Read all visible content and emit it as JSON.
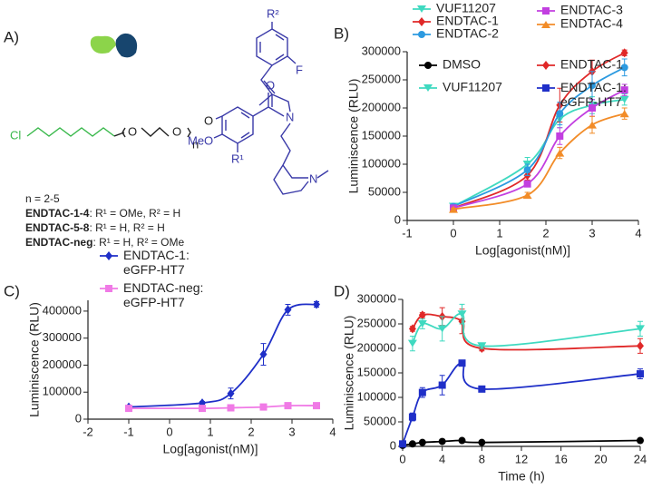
{
  "panel_labels": [
    "A)",
    "B)",
    "C)",
    "D)"
  ],
  "structure": {
    "atoms": [
      "Cl",
      "O",
      "O",
      "n",
      "O",
      "MeO",
      "R¹",
      "O",
      "N",
      "N",
      "F",
      "R²"
    ],
    "caption": [
      {
        "text": "n = 2-5"
      },
      {
        "name": "ENDTAC-1-4",
        "text": ": R¹ = OMe, R² = H"
      },
      {
        "name": "ENDTAC-5-8",
        "text": ": R¹ = H, R² = H"
      },
      {
        "name": "ENDTAC-neg",
        "text": ": R¹ = H, R² = OMe"
      }
    ]
  },
  "chart_data": [
    {
      "type": "line",
      "x_label": "Log[agonist(nM)]",
      "y_label": "Luminiscence (RLU)",
      "x": [
        0,
        1.6,
        2.3,
        3,
        3.7
      ],
      "series": [
        {
          "name": "VUF11207",
          "color": "#3fd9c0",
          "marker": "triangle-down",
          "values": [
            25000,
            100000,
            180000,
            205000,
            215000
          ],
          "errors": [
            2000,
            12000,
            15000,
            15000,
            10000
          ]
        },
        {
          "name": "ENDTAC-1",
          "color": "#e02828",
          "marker": "diamond",
          "values": [
            22000,
            80000,
            205000,
            265000,
            298000
          ],
          "errors": [
            2000,
            8000,
            30000,
            20000,
            5000
          ]
        },
        {
          "name": "ENDTAC-2",
          "color": "#2c9ae0",
          "marker": "circle",
          "values": [
            25000,
            90000,
            190000,
            240000,
            272000
          ],
          "errors": [
            2000,
            10000,
            20000,
            25000,
            15000
          ]
        },
        {
          "name": "ENDTAC-3",
          "color": "#c23fe0",
          "marker": "square",
          "values": [
            22000,
            65000,
            150000,
            200000,
            232000
          ],
          "errors": [
            2000,
            5000,
            15000,
            15000,
            10000
          ]
        },
        {
          "name": "ENDTAC-4",
          "color": "#f28c28",
          "marker": "triangle-up",
          "values": [
            20000,
            45000,
            120000,
            170000,
            190000
          ],
          "errors": [
            2000,
            5000,
            10000,
            15000,
            10000
          ]
        }
      ],
      "xlim": [
        -1,
        4
      ],
      "xticks": [
        -1,
        0,
        1,
        2,
        3,
        4
      ],
      "ylim": [
        0,
        300000
      ],
      "yticks": [
        0,
        50000,
        100000,
        150000,
        200000,
        250000,
        300000
      ]
    },
    {
      "type": "line",
      "x_label": "Log[agonist(nM)]",
      "y_label": "Luminiscence (RLU)",
      "x": [
        -1,
        0.8,
        1.5,
        2.3,
        2.9,
        3.6
      ],
      "series": [
        {
          "name": "ENDTAC-1:\neGFP-HT7",
          "color": "#1f2fc8",
          "marker": "diamond",
          "values": [
            45000,
            60000,
            95000,
            240000,
            405000,
            425000
          ],
          "errors": [
            5000,
            5000,
            20000,
            40000,
            20000,
            10000
          ]
        },
        {
          "name": "ENDTAC-neg:\neGFP-HT7",
          "color": "#f07ae6",
          "marker": "square",
          "values": [
            40000,
            40000,
            42000,
            45000,
            50000,
            50000
          ],
          "errors": [
            3000,
            3000,
            3000,
            3000,
            5000,
            8000
          ]
        }
      ],
      "xlim": [
        -2,
        4
      ],
      "xticks": [
        -2,
        -1,
        0,
        1,
        2,
        3,
        4
      ],
      "ylim": [
        0,
        440000
      ],
      "yticks": [
        0,
        100000,
        200000,
        300000,
        400000
      ]
    },
    {
      "type": "line",
      "x_label": "Time (h)",
      "y_label": "Luminiscence (RLU)",
      "x": [
        0,
        1,
        2,
        4,
        6,
        8,
        24
      ],
      "series": [
        {
          "name": "DMSO",
          "color": "#000000",
          "marker": "circle",
          "values": [
            2000,
            5000,
            8000,
            10000,
            12000,
            8000,
            12000
          ],
          "errors": [
            500,
            1000,
            1000,
            1000,
            1000,
            1000,
            1000
          ]
        },
        {
          "name": "ENDTAC-1",
          "color": "#e02828",
          "marker": "diamond",
          "values": [
            null,
            240000,
            268000,
            265000,
            255000,
            200000,
            205000
          ],
          "errors": [
            null,
            5000,
            5000,
            18000,
            25000,
            5000,
            15000
          ]
        },
        {
          "name": "VUF11207",
          "color": "#3fd9c0",
          "marker": "triangle-down",
          "values": [
            null,
            210000,
            250000,
            240000,
            270000,
            205000,
            240000
          ],
          "errors": [
            null,
            15000,
            10000,
            25000,
            20000,
            5000,
            15000
          ]
        },
        {
          "name": "ENDTAC-1:\neGFP-HT7",
          "color": "#1f2fc8",
          "marker": "square",
          "values": [
            5000,
            60000,
            110000,
            125000,
            170000,
            117000,
            148000
          ],
          "errors": [
            1000,
            8000,
            10000,
            20000,
            5000,
            5000,
            10000
          ]
        }
      ],
      "xlim": [
        0,
        24
      ],
      "xticks": [
        0,
        4,
        8,
        12,
        16,
        20,
        24
      ],
      "ylim": [
        0,
        300000
      ],
      "yticks": [
        0,
        50000,
        100000,
        150000,
        200000,
        250000,
        300000
      ]
    }
  ]
}
